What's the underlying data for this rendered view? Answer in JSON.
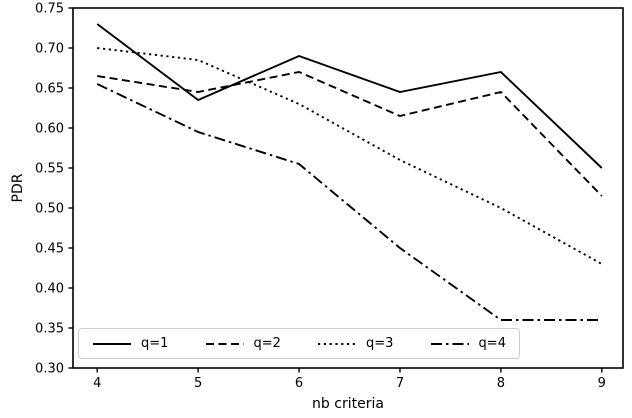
{
  "chart_data": {
    "type": "line",
    "title": "",
    "xlabel": "nb criteria",
    "ylabel": "PDR",
    "x": [
      4,
      5,
      6,
      7,
      8,
      9
    ],
    "series": [
      {
        "name": "q=1",
        "linestyle": "solid",
        "color": "#000000",
        "values": [
          0.73,
          0.635,
          0.69,
          0.645,
          0.67,
          0.55
        ]
      },
      {
        "name": "q=2",
        "linestyle": "dashed",
        "color": "#000000",
        "values": [
          0.665,
          0.645,
          0.67,
          0.615,
          0.645,
          0.515
        ]
      },
      {
        "name": "q=3",
        "linestyle": "dotted",
        "color": "#000000",
        "values": [
          0.7,
          0.685,
          0.63,
          0.56,
          0.5,
          0.43
        ]
      },
      {
        "name": "q=4",
        "linestyle": "dashdot",
        "color": "#000000",
        "values": [
          0.655,
          0.595,
          0.555,
          0.45,
          0.36,
          0.36
        ]
      }
    ],
    "xlim": [
      3.76,
      9.21
    ],
    "ylim": [
      0.3,
      0.75
    ],
    "xticks": [
      4,
      5,
      6,
      7,
      8,
      9
    ],
    "yticks": [
      0.3,
      0.35,
      0.4,
      0.45,
      0.5,
      0.55,
      0.6,
      0.65,
      0.7,
      0.75
    ],
    "grid": false,
    "legend_position": "lower-left-inside",
    "axis_color": "#000000",
    "legend_border_color": "#cccccc"
  }
}
